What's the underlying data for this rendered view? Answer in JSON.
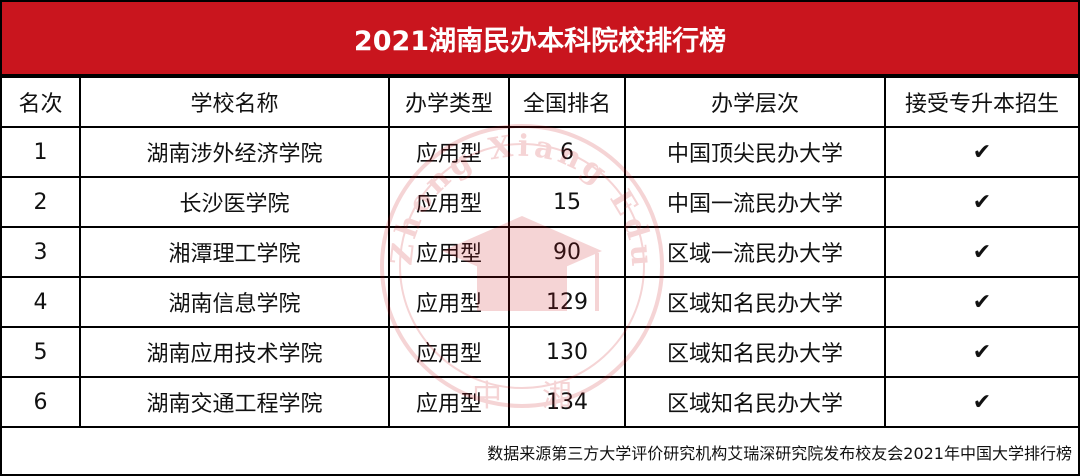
{
  "title": "2021湖南民办本科院校排行榜",
  "columns": [
    "名次",
    "学校名称",
    "办学类型",
    "全国排名",
    "办学层次",
    "接受专升本招生"
  ],
  "rows": [
    {
      "rank": "1",
      "name": "湖南涉外经济学院",
      "type": "应用型",
      "national_rank": "6",
      "level": "中国顶尖民办大学",
      "accepts": "✔"
    },
    {
      "rank": "2",
      "name": "长沙医学院",
      "type": "应用型",
      "national_rank": "15",
      "level": "中国一流民办大学",
      "accepts": "✔"
    },
    {
      "rank": "3",
      "name": "湘潭理工学院",
      "type": "应用型",
      "national_rank": "90",
      "level": "区域一流民办大学",
      "accepts": "✔"
    },
    {
      "rank": "4",
      "name": "湖南信息学院",
      "type": "应用型",
      "national_rank": "129",
      "level": "区域知名民办大学",
      "accepts": "✔"
    },
    {
      "rank": "5",
      "name": "湖南应用技术学院",
      "type": "应用型",
      "national_rank": "130",
      "level": "区域知名民办大学",
      "accepts": "✔"
    },
    {
      "rank": "6",
      "name": "湖南交通工程学院",
      "type": "应用型",
      "national_rank": "134",
      "level": "区域知名民办大学",
      "accepts": "✔"
    }
  ],
  "source": "数据来源第三方大学评价研究机构艾瑞深研究院发布校友会2021年中国大学排行榜",
  "watermark": {
    "text": "Zhong Xiang Education",
    "bottom_left": "中",
    "bottom_right": "湘"
  },
  "colors": {
    "header_bg": "#c9151e",
    "header_text": "#ffffff",
    "watermark": "#c9151e"
  }
}
